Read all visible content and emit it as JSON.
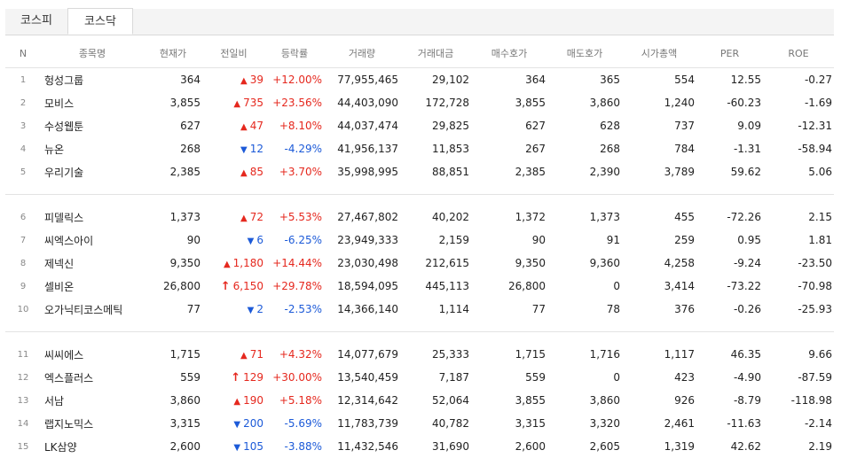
{
  "tabs": [
    {
      "label": "코스피",
      "active": false
    },
    {
      "label": "코스닥",
      "active": true
    }
  ],
  "columns": [
    "N",
    "종목명",
    "현재가",
    "전일비",
    "등락률",
    "거래량",
    "거래대금",
    "매수호가",
    "매도호가",
    "시가총액",
    "PER",
    "ROE"
  ],
  "colors": {
    "up": "#e5281e",
    "down": "#1c5ad8"
  },
  "groups": [
    [
      {
        "n": "1",
        "name": "헝성그룹",
        "price": "364",
        "dir": "up",
        "change": "39",
        "rate": "+12.00%",
        "volume": "77,955,465",
        "amount": "29,102",
        "bid": "364",
        "ask": "365",
        "mcap": "554",
        "per": "12.55",
        "roe": "-0.27"
      },
      {
        "n": "2",
        "name": "모비스",
        "price": "3,855",
        "dir": "up",
        "change": "735",
        "rate": "+23.56%",
        "volume": "44,403,090",
        "amount": "172,728",
        "bid": "3,855",
        "ask": "3,860",
        "mcap": "1,240",
        "per": "-60.23",
        "roe": "-1.69"
      },
      {
        "n": "3",
        "name": "수성웹툰",
        "price": "627",
        "dir": "up",
        "change": "47",
        "rate": "+8.10%",
        "volume": "44,037,474",
        "amount": "29,825",
        "bid": "627",
        "ask": "628",
        "mcap": "737",
        "per": "9.09",
        "roe": "-12.31"
      },
      {
        "n": "4",
        "name": "뉴온",
        "price": "268",
        "dir": "down",
        "change": "12",
        "rate": "-4.29%",
        "volume": "41,956,137",
        "amount": "11,853",
        "bid": "267",
        "ask": "268",
        "mcap": "784",
        "per": "-1.31",
        "roe": "-58.94"
      },
      {
        "n": "5",
        "name": "우리기술",
        "price": "2,385",
        "dir": "up",
        "change": "85",
        "rate": "+3.70%",
        "volume": "35,998,995",
        "amount": "88,851",
        "bid": "2,385",
        "ask": "2,390",
        "mcap": "3,789",
        "per": "59.62",
        "roe": "5.06"
      }
    ],
    [
      {
        "n": "6",
        "name": "피델릭스",
        "price": "1,373",
        "dir": "up",
        "change": "72",
        "rate": "+5.53%",
        "volume": "27,467,802",
        "amount": "40,202",
        "bid": "1,372",
        "ask": "1,373",
        "mcap": "455",
        "per": "-72.26",
        "roe": "2.15"
      },
      {
        "n": "7",
        "name": "씨엑스아이",
        "price": "90",
        "dir": "down",
        "change": "6",
        "rate": "-6.25%",
        "volume": "23,949,333",
        "amount": "2,159",
        "bid": "90",
        "ask": "91",
        "mcap": "259",
        "per": "0.95",
        "roe": "1.81"
      },
      {
        "n": "8",
        "name": "제넥신",
        "price": "9,350",
        "dir": "up",
        "change": "1,180",
        "rate": "+14.44%",
        "volume": "23,030,498",
        "amount": "212,615",
        "bid": "9,350",
        "ask": "9,360",
        "mcap": "4,258",
        "per": "-9.24",
        "roe": "-23.50"
      },
      {
        "n": "9",
        "name": "셀비온",
        "price": "26,800",
        "dir": "limit",
        "change": "6,150",
        "rate": "+29.78%",
        "volume": "18,594,095",
        "amount": "445,113",
        "bid": "26,800",
        "ask": "0",
        "mcap": "3,414",
        "per": "-73.22",
        "roe": "-70.98"
      },
      {
        "n": "10",
        "name": "오가닉티코스메틱",
        "price": "77",
        "dir": "down",
        "change": "2",
        "rate": "-2.53%",
        "volume": "14,366,140",
        "amount": "1,114",
        "bid": "77",
        "ask": "78",
        "mcap": "376",
        "per": "-0.26",
        "roe": "-25.93"
      }
    ],
    [
      {
        "n": "11",
        "name": "씨씨에스",
        "price": "1,715",
        "dir": "up",
        "change": "71",
        "rate": "+4.32%",
        "volume": "14,077,679",
        "amount": "25,333",
        "bid": "1,715",
        "ask": "1,716",
        "mcap": "1,117",
        "per": "46.35",
        "roe": "9.66"
      },
      {
        "n": "12",
        "name": "엑스플러스",
        "price": "559",
        "dir": "limit",
        "change": "129",
        "rate": "+30.00%",
        "volume": "13,540,459",
        "amount": "7,187",
        "bid": "559",
        "ask": "0",
        "mcap": "423",
        "per": "-4.90",
        "roe": "-87.59"
      },
      {
        "n": "13",
        "name": "서남",
        "price": "3,860",
        "dir": "up",
        "change": "190",
        "rate": "+5.18%",
        "volume": "12,314,642",
        "amount": "52,064",
        "bid": "3,855",
        "ask": "3,860",
        "mcap": "926",
        "per": "-8.79",
        "roe": "-118.98"
      },
      {
        "n": "14",
        "name": "랩지노믹스",
        "price": "3,315",
        "dir": "down",
        "change": "200",
        "rate": "-5.69%",
        "volume": "11,783,739",
        "amount": "40,782",
        "bid": "3,315",
        "ask": "3,320",
        "mcap": "2,461",
        "per": "-11.63",
        "roe": "-2.14"
      },
      {
        "n": "15",
        "name": "LK삼양",
        "price": "2,600",
        "dir": "down",
        "change": "105",
        "rate": "-3.88%",
        "volume": "11,432,546",
        "amount": "31,690",
        "bid": "2,600",
        "ask": "2,605",
        "mcap": "1,319",
        "per": "42.62",
        "roe": "2.19"
      }
    ]
  ]
}
